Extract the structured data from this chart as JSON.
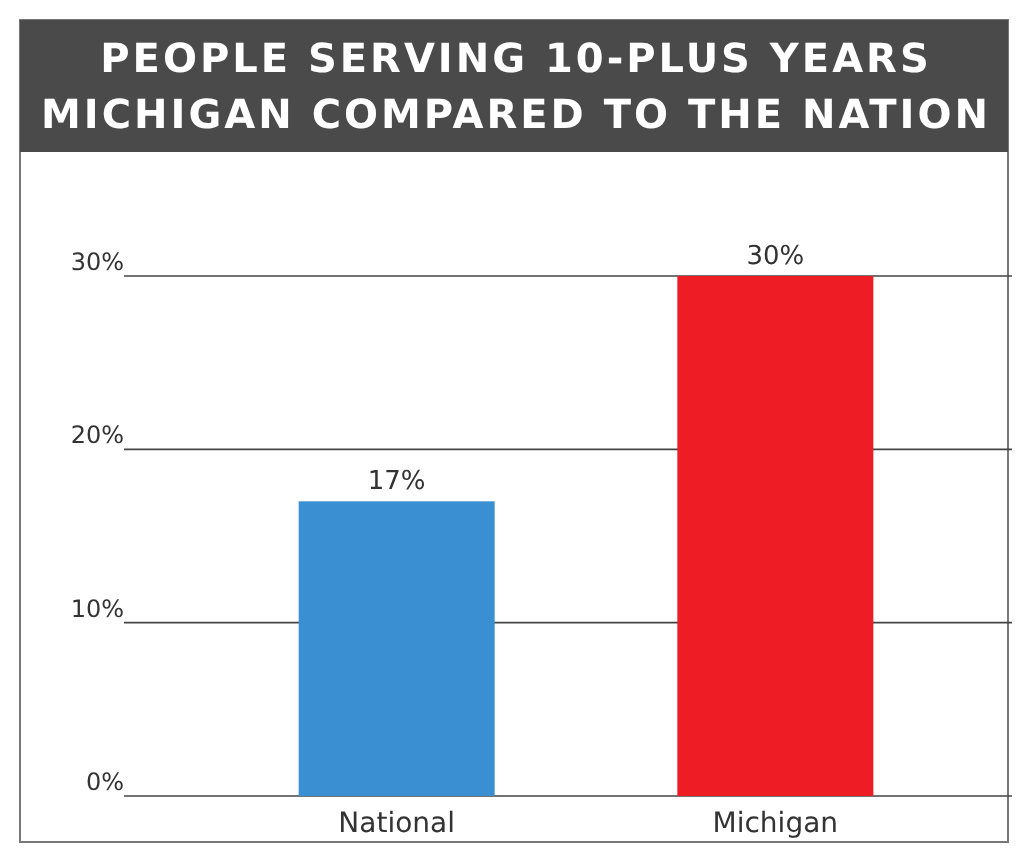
{
  "chart_data": {
    "type": "bar",
    "title": "PEOPLE SERVING 10-PLUS YEARS\nMICHIGAN COMPARED TO THE NATION",
    "categories": [
      "National",
      "Michigan"
    ],
    "values": [
      17,
      30
    ],
    "colors": [
      "#3a8fd3",
      "#ee1c25"
    ],
    "value_labels": [
      "17%",
      "30%"
    ],
    "ylim": [
      0,
      30
    ],
    "yticks": [
      {
        "value": 0,
        "label": "0%"
      },
      {
        "value": 10,
        "label": "10%"
      },
      {
        "value": 20,
        "label": "20%"
      },
      {
        "value": 30,
        "label": "30%"
      }
    ],
    "grid": "y"
  }
}
